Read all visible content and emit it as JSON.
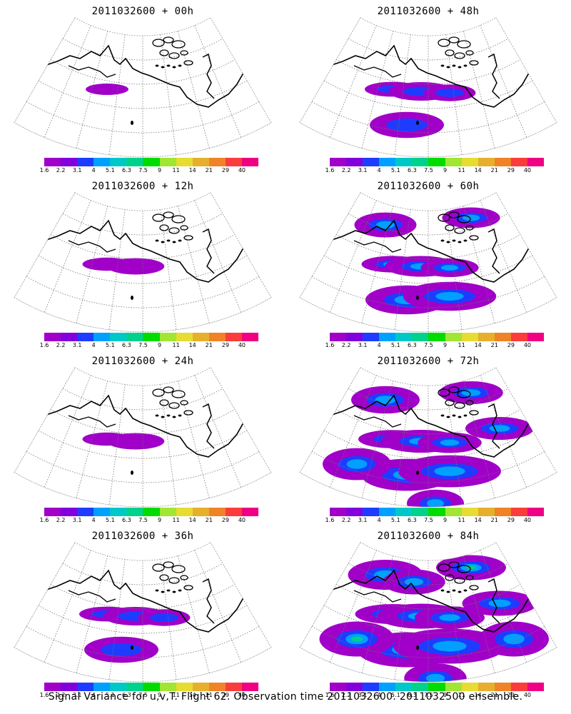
{
  "footer": "Signal Variance for u,v,T. Flight 62. Observation time 2011032600. 2011032500 ensemble.",
  "colorbar": {
    "labels": [
      "1.6",
      "2.2",
      "3.1",
      "4",
      "5.1",
      "6.3",
      "7.5",
      "9",
      "11",
      "14",
      "21",
      "29",
      "40"
    ],
    "colors": [
      "#a000c8",
      "#8200dc",
      "#1e3cff",
      "#00a0ff",
      "#00c8c8",
      "#00d28c",
      "#00dc00",
      "#a0e632",
      "#e6dc32",
      "#e6af2d",
      "#f08228",
      "#fa3c3c",
      "#f00082"
    ]
  },
  "panels": [
    {
      "title": "2011032600 + 00h"
    },
    {
      "title": "2011032600 + 48h"
    },
    {
      "title": "2011032600 + 12h"
    },
    {
      "title": "2011032600 + 60h"
    },
    {
      "title": "2011032600 + 24h"
    },
    {
      "title": "2011032600 + 72h"
    },
    {
      "title": "2011032600 + 36h"
    },
    {
      "title": "2011032600 + 84h"
    }
  ]
}
